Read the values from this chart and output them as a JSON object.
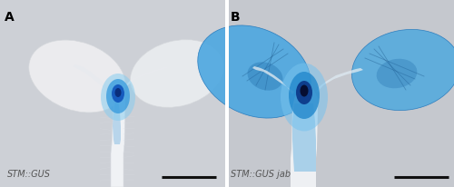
{
  "figsize": [
    5.0,
    2.07
  ],
  "dpi": 100,
  "bg_A": "#cdd0d6",
  "bg_B": "#c5c8ce",
  "divider_color": "#aaaaaa",
  "label_A": "A",
  "label_B": "B",
  "caption_A": "STM::GUS",
  "caption_B": "STM::GUS jab",
  "label_fontsize": 10,
  "caption_fontsize": 7,
  "text_color": "#555555",
  "scalebar_color": "#111111",
  "scalebar_lw": 2.2,
  "panel_A": {
    "bg": "#cdd0d6",
    "cot_left_color": "#e8eaed",
    "cot_right_color": "#eaecef",
    "stem_color": "#f0f2f5",
    "gus_blue_light": "#5bb8e8",
    "gus_blue_mid": "#2277cc",
    "gus_blue_dark": "#0a3d8a"
  },
  "panel_B": {
    "bg": "#c5c8ce",
    "cot_left_color": "#4fa8e0",
    "cot_right_color": "#55aadd",
    "stem_color": "#eef0f3",
    "gus_blue_light": "#6bbde8",
    "gus_blue_mid": "#2288cc",
    "gus_blue_dark": "#0a2060"
  }
}
